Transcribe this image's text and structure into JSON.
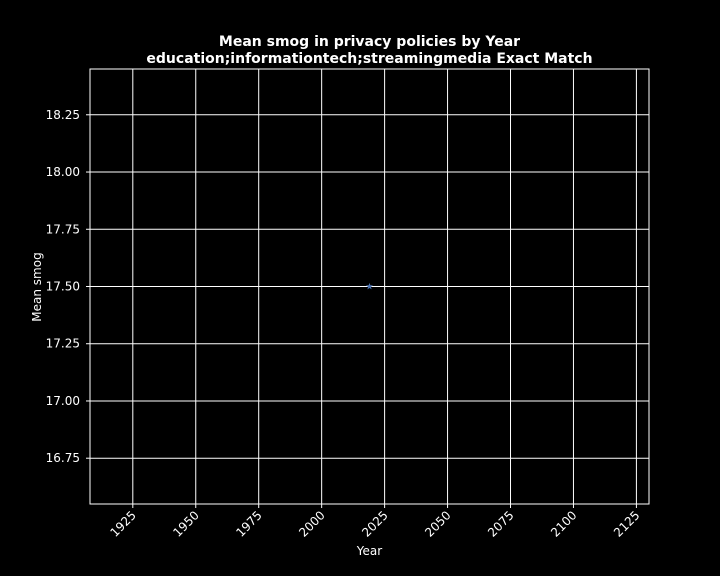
{
  "chart_data": {
    "type": "line",
    "title": "Mean smog in privacy policies by Year",
    "subtitle": "education;informationtech;streamingmedia Exact Match",
    "xlabel": "Year",
    "ylabel": "Mean smog",
    "xlim": [
      1908,
      2130
    ],
    "ylim": [
      16.55,
      18.45
    ],
    "xticks": [
      1925,
      1950,
      1975,
      2000,
      2025,
      2050,
      2075,
      2100,
      2125
    ],
    "yticks": [
      16.75,
      17.0,
      17.25,
      17.5,
      17.75,
      18.0,
      18.25
    ],
    "ytick_labels": [
      "16.75",
      "17.00",
      "17.25",
      "17.50",
      "17.75",
      "18.00",
      "18.25"
    ],
    "xtick_labels": [
      "1925",
      "1950",
      "1975",
      "2000",
      "2025",
      "2050",
      "2075",
      "2100",
      "2125"
    ],
    "grid": true,
    "background": "#000000",
    "foreground": "#ffffff",
    "series": [
      {
        "color": "#4c72b0",
        "marker": "*",
        "x": [
          2019
        ],
        "y": [
          17.5
        ]
      }
    ]
  }
}
